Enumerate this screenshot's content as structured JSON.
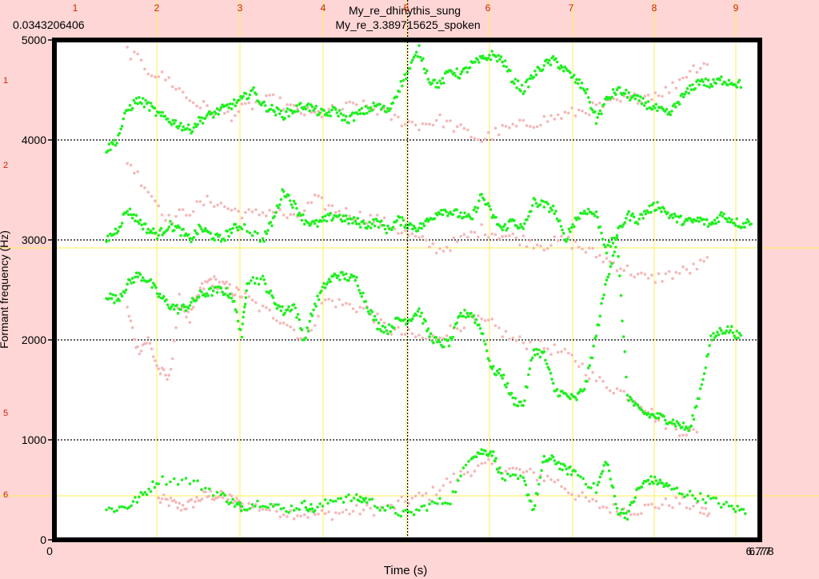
{
  "chart_data": {
    "type": "scatter",
    "titles": [
      "My_re_dhinythis_sung",
      "My_re_3.389715625_spoken"
    ],
    "top_left_value": "0.0343206406",
    "xlabel": "Time (s)",
    "ylabel": "Formant frequency (Hz)",
    "xlim": [
      0,
      6.77
    ],
    "ylim": [
      0,
      5000
    ],
    "x_tick_labels": [
      "0",
      "6.778",
      "6.77"
    ],
    "y_ticks": [
      0,
      1000,
      2000,
      3000,
      4000,
      5000
    ],
    "y_tick_labels": [
      "0",
      "1000",
      "2000",
      "3000",
      "4000",
      "5000"
    ],
    "top_ruler_labels": [
      "1",
      "2",
      "3",
      "4",
      "5",
      "6",
      "7",
      "8",
      "9"
    ],
    "left_ruler_labels": [
      "1",
      "2",
      "5",
      "6"
    ],
    "cursor_time": 3.389715625,
    "colors": {
      "background": "#ffd6d6",
      "sung": "#22ee22",
      "spoken": "#f4b8b8",
      "ruler_text": "#cc2200",
      "guide": "#ffee55",
      "grid": "#000000"
    },
    "series": [
      {
        "name": "My_re_dhinythis_sung",
        "color": "#22ee22",
        "tracks": [
          {
            "x": [
              0.5,
              0.7,
              0.85,
              1.0,
              1.3,
              1.6,
              1.75,
              1.8,
              2.0,
              2.2,
              2.4,
              2.5,
              2.7,
              2.9,
              3.0,
              3.2,
              3.4,
              3.6,
              3.8,
              4.0,
              4.1,
              4.2,
              4.3,
              4.5,
              4.6,
              4.7,
              4.8,
              4.9,
              5.0,
              5.2,
              5.3,
              5.4,
              5.5,
              5.6,
              5.7,
              5.8,
              5.9,
              6.1,
              6.3,
              6.5,
              6.65
            ],
            "y": [
              300,
              330,
              450,
              600,
              590,
              450,
              350,
              330,
              380,
              300,
              350,
              300,
              420,
              410,
              400,
              300,
              250,
              350,
              400,
              850,
              880,
              880,
              620,
              600,
              300,
              800,
              800,
              700,
              680,
              500,
              800,
              300,
              250,
              500,
              600,
              580,
              520,
              450,
              400,
              320,
              280
            ]
          },
          {
            "x": [
              0.5,
              0.6,
              0.7,
              0.8,
              0.9,
              1.0,
              1.1,
              1.2,
              1.3,
              1.4,
              1.5,
              1.6,
              1.7,
              1.8,
              1.85,
              2.0,
              2.1,
              2.2,
              2.3,
              2.4,
              2.5,
              2.6,
              2.7,
              2.8,
              2.9,
              3.0,
              3.1,
              3.2,
              3.3,
              3.4,
              3.5,
              3.6,
              3.7,
              3.8,
              3.9,
              4.0,
              4.1,
              4.2,
              4.3,
              4.4,
              4.5,
              4.6,
              4.7,
              4.8,
              4.9,
              5.0,
              5.1,
              5.2,
              5.3,
              5.4,
              5.5,
              5.6,
              5.7,
              5.8,
              5.9,
              6.0,
              6.1,
              6.2,
              6.3,
              6.4,
              6.5,
              6.6
            ],
            "y": [
              2450,
              2400,
              2550,
              2650,
              2600,
              2450,
              2350,
              2300,
              2350,
              2450,
              2480,
              2500,
              2450,
              2050,
              2600,
              2600,
              2400,
              2280,
              2350,
              2000,
              2350,
              2550,
              2650,
              2630,
              2600,
              2350,
              2150,
              2100,
              2200,
              2200,
              2300,
              2050,
              1950,
              1980,
              2250,
              2270,
              2100,
              1700,
              1650,
              1400,
              1350,
              1900,
              1850,
              1500,
              1450,
              1400,
              1550,
              2050,
              2600,
              3000,
              1450,
              1300,
              1250,
              1230,
              1200,
              1150,
              1100,
              1500,
              2000,
              2100,
              2100,
              2000
            ]
          },
          {
            "x": [
              0.5,
              0.6,
              0.7,
              0.8,
              0.9,
              1.0,
              1.1,
              1.2,
              1.3,
              1.4,
              1.5,
              1.6,
              1.7,
              1.8,
              2.0,
              2.1,
              2.2,
              2.3,
              2.4,
              2.5,
              2.6,
              2.7,
              2.8,
              2.9,
              3.0,
              3.1,
              3.2,
              3.3,
              3.4,
              3.5,
              3.6,
              3.7,
              3.8,
              3.9,
              4.0,
              4.1,
              4.2,
              4.3,
              4.4,
              4.5,
              4.6,
              4.7,
              4.8,
              4.9,
              5.0,
              5.1,
              5.2,
              5.3,
              5.4,
              5.5,
              5.6,
              5.7,
              5.8,
              5.9,
              6.0,
              6.1,
              6.2,
              6.3,
              6.4,
              6.5,
              6.6,
              6.7
            ],
            "y": [
              3000,
              3100,
              3300,
              3200,
              3100,
              3050,
              3150,
              3100,
              3000,
              3120,
              3050,
              3000,
              3100,
              3150,
              3000,
              3200,
              3500,
              3350,
              3200,
              3150,
              3200,
              3250,
              3200,
              3180,
              3150,
              3180,
              3100,
              3200,
              3150,
              3120,
              3200,
              3300,
              3280,
              3250,
              3200,
              3450,
              3250,
              3100,
              3200,
              3100,
              3380,
              3350,
              3300,
              3000,
              3200,
              3300,
              3250,
              2900,
              3050,
              3250,
              3200,
              3300,
              3350,
              3250,
              3200,
              3180,
              3200,
              3150,
              3250,
              3200,
              3150,
              3200
            ]
          },
          {
            "x": [
              0.5,
              0.6,
              0.7,
              0.8,
              0.9,
              1.0,
              1.1,
              1.2,
              1.3,
              1.4,
              1.5,
              1.6,
              1.7,
              1.8,
              1.9,
              2.0,
              2.1,
              2.2,
              2.3,
              2.4,
              2.5,
              2.6,
              2.7,
              2.8,
              2.9,
              3.0,
              3.1,
              3.2,
              3.3,
              3.4,
              3.5,
              3.6,
              3.7,
              3.8,
              3.9,
              4.0,
              4.1,
              4.2,
              4.3,
              4.4,
              4.5,
              4.6,
              4.7,
              4.8,
              4.9,
              5.0,
              5.1,
              5.2,
              5.3,
              5.4,
              5.5,
              5.6,
              5.7,
              5.8,
              5.9,
              6.0,
              6.1,
              6.2,
              6.3,
              6.4,
              6.5,
              6.6
            ],
            "y": [
              3900,
              4000,
              4300,
              4400,
              4350,
              4250,
              4200,
              4150,
              4100,
              4200,
              4250,
              4300,
              4350,
              4400,
              4500,
              4350,
              4300,
              4250,
              4300,
              4350,
              4300,
              4250,
              4300,
              4200,
              4250,
              4300,
              4350,
              4280,
              4500,
              4700,
              4900,
              4600,
              4550,
              4700,
              4650,
              4750,
              4800,
              4850,
              4800,
              4600,
              4500,
              4650,
              4750,
              4800,
              4700,
              4600,
              4500,
              4200,
              4400,
              4500,
              4450,
              4400,
              4350,
              4300,
              4250,
              4400,
              4500,
              4600,
              4550,
              4600,
              4580,
              4550
            ]
          }
        ]
      },
      {
        "name": "My_re_3.389715625_spoken",
        "color": "#f4b8b8",
        "tracks": [
          {
            "x": [
              1.0,
              1.1,
              1.2,
              1.3,
              1.4,
              1.5,
              1.6,
              1.7,
              1.8,
              2.0,
              2.2,
              2.4,
              2.6,
              2.8,
              3.0,
              3.2,
              3.4,
              3.6,
              3.8,
              4.0,
              4.2,
              4.4,
              4.6,
              4.8,
              5.0,
              5.2,
              5.4,
              5.6,
              5.8,
              6.0,
              6.2,
              6.3
            ],
            "y": [
              400,
              380,
              330,
              350,
              420,
              450,
              430,
              400,
              350,
              320,
              280,
              260,
              250,
              280,
              300,
              310,
              400,
              450,
              600,
              700,
              750,
              700,
              650,
              600,
              450,
              350,
              300,
              300,
              350,
              380,
              300,
              250
            ]
          },
          {
            "x": [
              0.7,
              0.8,
              0.9,
              1.0,
              1.1,
              1.2,
              1.3,
              1.4,
              1.5,
              1.6,
              1.7,
              1.8,
              2.0,
              2.2,
              2.4,
              2.6,
              2.8,
              3.0,
              3.2,
              3.4,
              3.6,
              3.8,
              4.0,
              4.2,
              4.4,
              4.6,
              4.8,
              5.0,
              5.2,
              5.4,
              5.6,
              5.8,
              6.0,
              6.2
            ],
            "y": [
              2300,
              1900,
              2000,
              1700,
              1600,
              2400,
              2200,
              2500,
              2600,
              2550,
              2500,
              2450,
              2300,
              2200,
              2000,
              2400,
              2350,
              2300,
              2100,
              2050,
              2000,
              2100,
              2200,
              2150,
              2000,
              1950,
              1900,
              1800,
              1600,
              1500,
              1400,
              1200,
              1100,
              1050
            ]
          },
          {
            "x": [
              0.7,
              0.9,
              1.1,
              1.3,
              1.5,
              1.7,
              1.9,
              2.1,
              2.3,
              2.5,
              2.7,
              2.9,
              3.1,
              3.3,
              3.5,
              3.7,
              3.9,
              4.1,
              4.3,
              4.5,
              4.7,
              4.9,
              5.1,
              5.3,
              5.5,
              5.7,
              5.9,
              6.1,
              6.3
            ],
            "y": [
              3800,
              3500,
              3200,
              3300,
              3400,
              3300,
              3250,
              3300,
              3200,
              3400,
              3300,
              3250,
              3200,
              3100,
              3000,
              2900,
              3000,
              3100,
              3050,
              3000,
              2950,
              3000,
              2900,
              2800,
              2700,
              2600,
              2650,
              2700,
              2800
            ]
          },
          {
            "x": [
              0.7,
              0.9,
              1.1,
              1.3,
              1.5,
              1.7,
              1.9,
              2.1,
              2.3,
              2.5,
              2.7,
              2.9,
              3.1,
              3.3,
              3.5,
              3.7,
              3.9,
              4.1,
              4.3,
              4.5,
              4.7,
              4.9,
              5.1,
              5.3,
              5.5,
              5.7,
              5.9,
              6.1,
              6.3
            ],
            "y": [
              4900,
              4700,
              4600,
              4400,
              4300,
              4250,
              4350,
              4400,
              4300,
              4250,
              4300,
              4350,
              4300,
              4200,
              4150,
              4200,
              4100,
              4000,
              4100,
              4150,
              4200,
              4250,
              4300,
              4350,
              4400,
              4450,
              4500,
              4700,
              4800
            ]
          }
        ]
      }
    ]
  }
}
